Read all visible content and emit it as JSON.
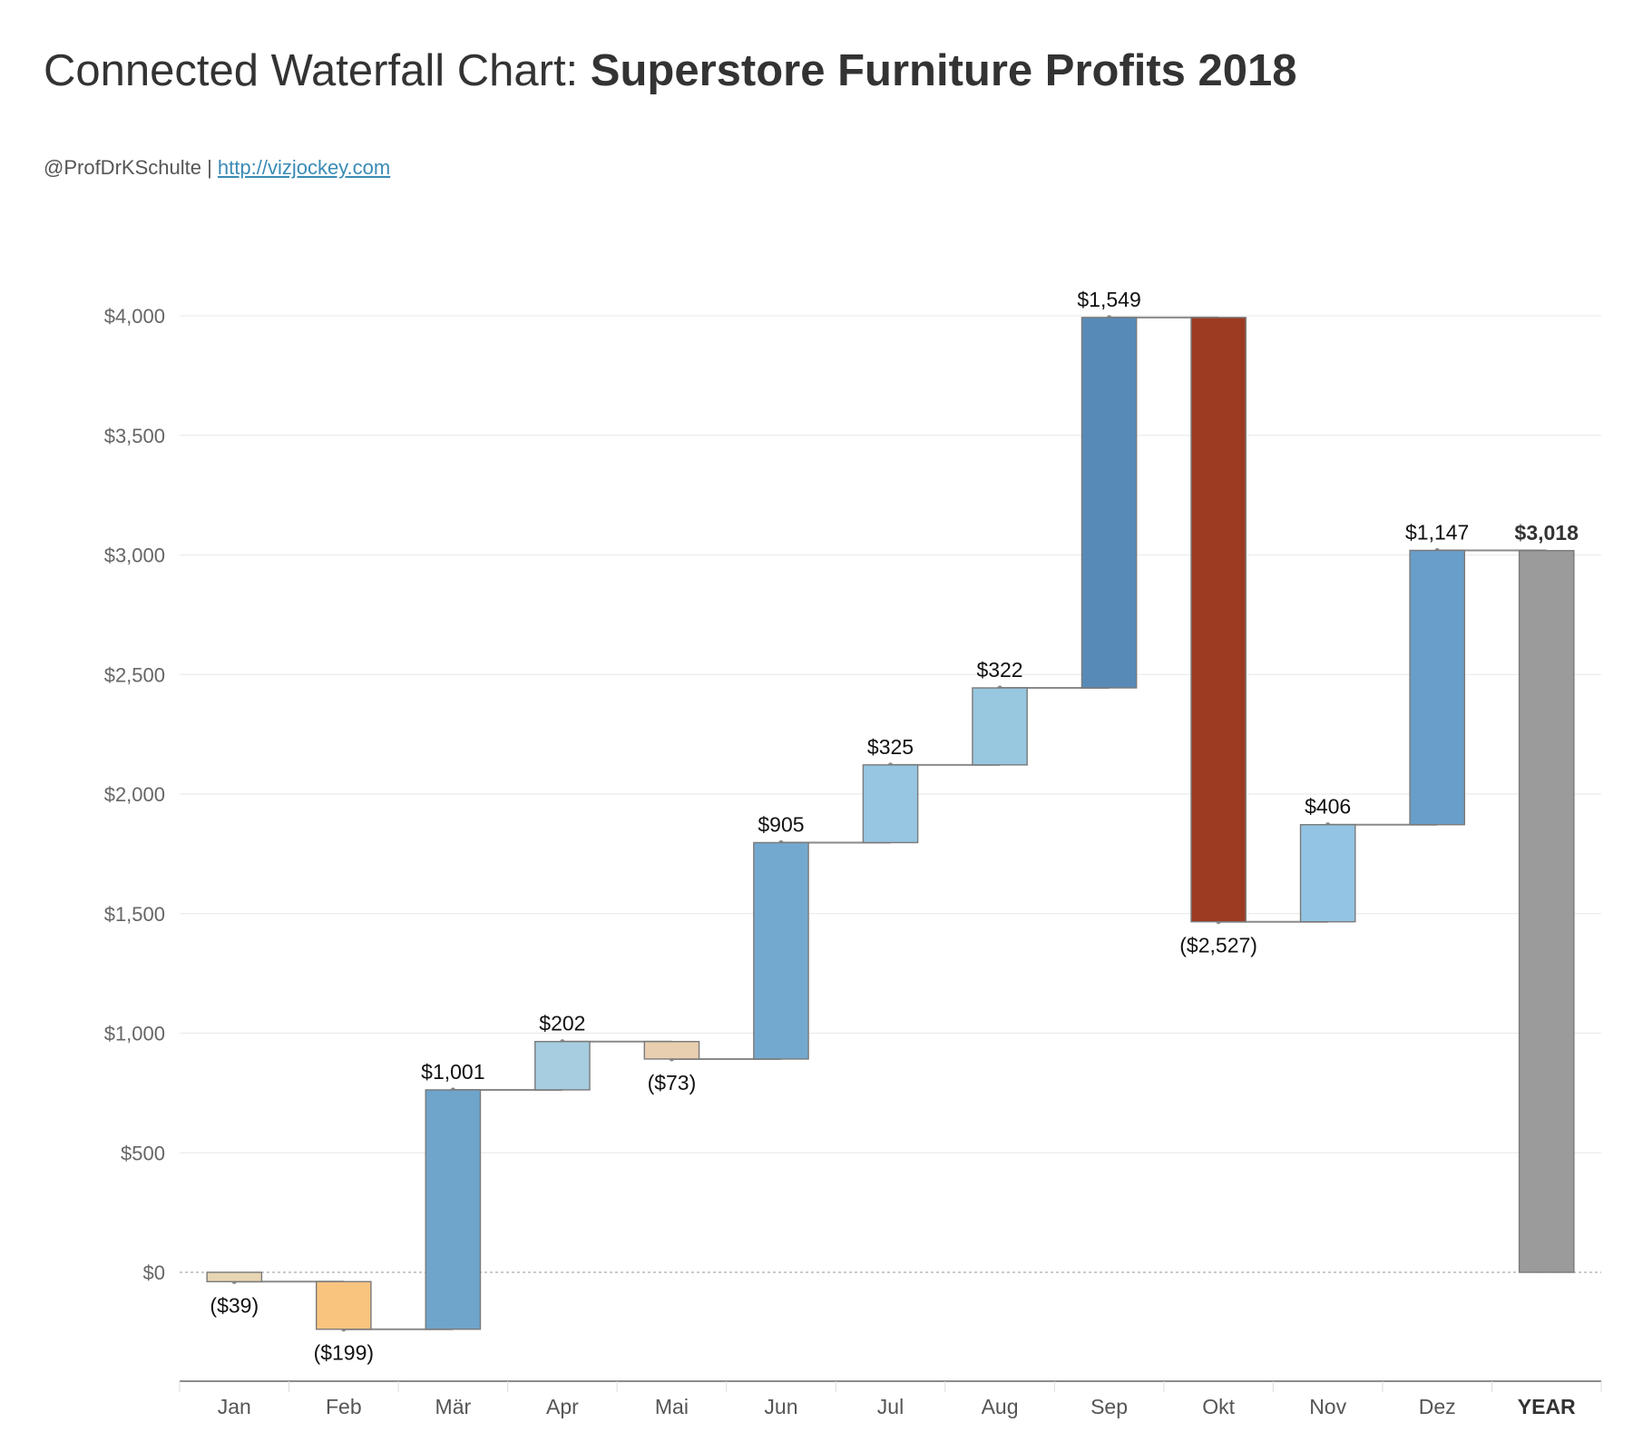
{
  "header": {
    "title_prefix": "Connected Waterfall Chart: ",
    "title_bold": "Superstore Furniture Profits 2018",
    "author": "@ProfDrKSchulte",
    "separator": " | ",
    "link_text": "http://vizjockey.com"
  },
  "colors": {
    "background": "#ffffff",
    "connector": "#8a8a8a",
    "bar_border": "#7a7a7a",
    "gridline": "#ececec",
    "zero_line": "#aaaaaa",
    "axis_line": "#666666"
  },
  "chart_data": {
    "type": "bar",
    "subtype": "waterfall",
    "categories": [
      "Jan",
      "Feb",
      "Mär",
      "Apr",
      "Mai",
      "Jun",
      "Jul",
      "Aug",
      "Sep",
      "Okt",
      "Nov",
      "Dez",
      "YEAR"
    ],
    "values": [
      -39,
      -199,
      1001,
      202,
      -73,
      905,
      325,
      322,
      1549,
      -2527,
      406,
      1147,
      3018
    ],
    "value_labels": [
      "($39)",
      "($199)",
      "$1,001",
      "$202",
      "($73)",
      "$905",
      "$325",
      "$322",
      "$1,549",
      "($2,527)",
      "$406",
      "$1,147",
      "$3,018"
    ],
    "bar_colors": [
      "#e8d6b3",
      "#f8c47e",
      "#6fa4cb",
      "#a6cde0",
      "#e8cfb0",
      "#74a9cf",
      "#96c6e2",
      "#98c7e0",
      "#588ab8",
      "#9c3b22",
      "#93c4e4",
      "#689ec9",
      "#9b9b9b"
    ],
    "total_index": 12,
    "yticks": [
      0,
      500,
      1000,
      1500,
      2000,
      2500,
      3000,
      3500,
      4000
    ],
    "ytick_labels": [
      "$0",
      "$500",
      "$1,000",
      "$1,500",
      "$2,000",
      "$2,500",
      "$3,000",
      "$3,500",
      "$4,000"
    ],
    "ylim": [
      -450,
      4000
    ],
    "grid": true,
    "xlabel": "",
    "ylabel": ""
  }
}
